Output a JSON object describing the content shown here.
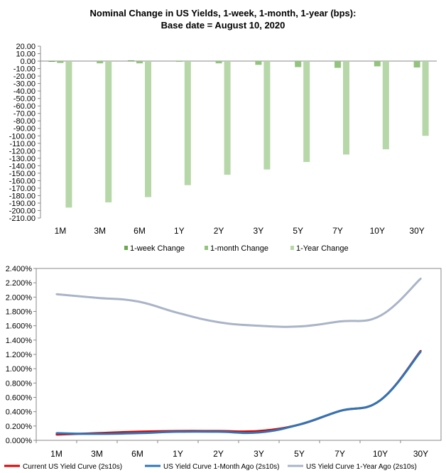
{
  "chart_data": [
    {
      "type": "bar",
      "title_line1": "Nominal Change in US Yields, 1-week, 1-month, 1-year (bps):",
      "title_line2": "Base date = August 10, 2020",
      "categories": [
        "1M",
        "3M",
        "6M",
        "1Y",
        "2Y",
        "3Y",
        "5Y",
        "7Y",
        "10Y",
        "30Y"
      ],
      "ylim": [
        -210,
        20
      ],
      "ytick_step": 10,
      "legend_position": "bottom",
      "series": [
        {
          "name": "1-week Change",
          "color": "#6aa84f",
          "values": [
            -0.2,
            0.0,
            1.0,
            0.0,
            0.0,
            0.0,
            0.0,
            0.0,
            0.0,
            0.0
          ]
        },
        {
          "name": "1-month Change",
          "color": "#93c47d",
          "values": [
            -2.5,
            -3.0,
            -3.0,
            -1.0,
            -3.0,
            -5.0,
            -8.0,
            -9.0,
            -7.0,
            -8.5
          ]
        },
        {
          "name": "1-Year Change",
          "color": "#b6d7a8",
          "values": [
            -196.0,
            -189.0,
            -182.0,
            -166.0,
            -152.0,
            -145.0,
            -135.0,
            -125.0,
            -118.0,
            -100.0
          ]
        }
      ]
    },
    {
      "type": "line",
      "categories": [
        "1M",
        "3M",
        "6M",
        "1Y",
        "2Y",
        "3Y",
        "5Y",
        "7Y",
        "10Y",
        "30Y"
      ],
      "ylim": [
        0,
        2.4
      ],
      "ytick_step": 0.2,
      "ytick_format": "percent_3dp",
      "legend_position": "bottom",
      "series": [
        {
          "name": "Current US Yield Curve (2s10s)",
          "color": "#e00000",
          "values": [
            0.08,
            0.1,
            0.12,
            0.13,
            0.13,
            0.13,
            0.22,
            0.41,
            0.56,
            1.25
          ]
        },
        {
          "name": "US Yield Curve 1-Month Ago (2s10s)",
          "color": "#2e75b6",
          "values": [
            0.1,
            0.09,
            0.1,
            0.12,
            0.12,
            0.11,
            0.22,
            0.41,
            0.56,
            1.24
          ]
        },
        {
          "name": "US Yield Curve 1-Year Ago (2s10s)",
          "color": "#aab4c8",
          "values": [
            2.04,
            1.99,
            1.94,
            1.78,
            1.65,
            1.6,
            1.59,
            1.66,
            1.74,
            2.26
          ]
        }
      ]
    }
  ]
}
